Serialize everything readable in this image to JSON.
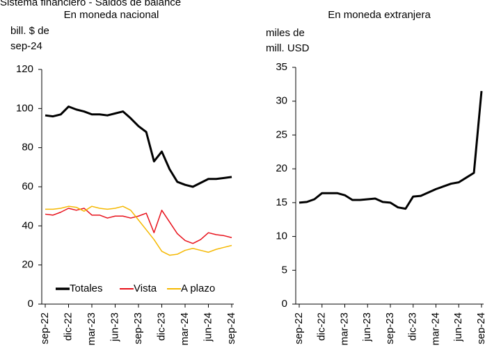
{
  "title": "Sistema financiero - Saldos de balance",
  "chart_data": [
    {
      "type": "line",
      "title": "En moneda nacional",
      "ylabel": [
        "bill. $ de",
        "sep-24"
      ],
      "categories": [
        "sep-22",
        null,
        null,
        "dic-22",
        null,
        null,
        "mar-23",
        null,
        null,
        "jun-23",
        null,
        null,
        "sep-23",
        null,
        null,
        "dic-23",
        null,
        null,
        "mar-24",
        null,
        null,
        "jun-24",
        null,
        null,
        "sep-24"
      ],
      "ylim": [
        0,
        120
      ],
      "yticks": [
        0,
        20,
        40,
        60,
        80,
        100,
        120
      ],
      "legend": "lower left",
      "series": [
        {
          "name": "Totales",
          "color": "#000000",
          "values": [
            96.5,
            96,
            97,
            101,
            99.5,
            98.5,
            97,
            97,
            96.5,
            97.5,
            98.5,
            95,
            91,
            88,
            73,
            78,
            69,
            62.5,
            61,
            60,
            62,
            64,
            64,
            64.5,
            65
          ]
        },
        {
          "name": "Vista",
          "color": "#e8101a",
          "values": [
            46,
            45.5,
            47,
            49,
            48,
            49,
            45.5,
            45.5,
            44,
            45,
            45,
            44,
            45,
            46.5,
            36.5,
            48,
            42,
            36,
            32.5,
            31,
            33,
            36.5,
            35.5,
            35,
            34
          ]
        },
        {
          "name": "A plazo",
          "color": "#f5b800",
          "values": [
            48.5,
            48.5,
            49,
            50,
            49.5,
            47.5,
            50,
            49,
            48.5,
            49,
            50,
            48,
            43,
            38,
            33,
            27,
            25,
            25.5,
            27.5,
            28.5,
            27.5,
            26.5,
            28,
            29,
            30
          ]
        }
      ]
    },
    {
      "type": "line",
      "title": "En moneda extranjera",
      "ylabel": [
        "miles de",
        "mill. USD"
      ],
      "categories": [
        "sep-22",
        null,
        null,
        "dic-22",
        null,
        null,
        "mar-23",
        null,
        null,
        "jun-23",
        null,
        null,
        "sep-23",
        null,
        null,
        "dic-23",
        null,
        null,
        "mar-24",
        null,
        null,
        "jun-24",
        null,
        null,
        "sep-24"
      ],
      "ylim": [
        0,
        35
      ],
      "yticks": [
        0,
        5,
        10,
        15,
        20,
        25,
        30,
        35
      ],
      "series": [
        {
          "color": "#000000",
          "values": [
            15,
            15.1,
            15.5,
            16.4,
            16.4,
            16.4,
            16.1,
            15.4,
            15.4,
            15.5,
            15.6,
            15.1,
            15,
            14.3,
            14.1,
            15.9,
            16,
            16.5,
            17,
            17.4,
            17.8,
            18,
            18.7,
            19.4,
            31.5
          ]
        }
      ]
    }
  ]
}
